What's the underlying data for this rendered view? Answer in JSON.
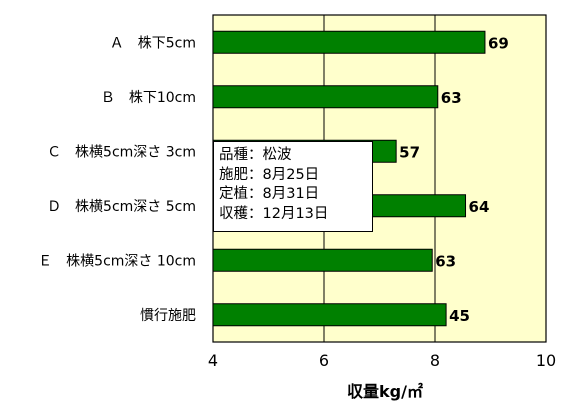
{
  "colors": {
    "plot_bg": "#FFFFCC",
    "bar": "#008000",
    "bar_border": "#000000",
    "grid": "#000000"
  },
  "chart_data": {
    "type": "bar",
    "orientation": "horizontal",
    "categories": [
      "Ａ　株下5cm",
      "Ｂ　株下10cm",
      "Ｃ　株横5cm深さ 3cm",
      "Ｄ　株横5cm深さ 5cm",
      "Ｅ　株横5cm深さ 10cm",
      "慣行施肥"
    ],
    "values": [
      8.9,
      8.05,
      7.3,
      8.55,
      7.95,
      8.2
    ],
    "data_labels": [
      "69",
      "63",
      "57",
      "64",
      "63",
      "45"
    ],
    "xlabel": "収量kg/㎡",
    "xlim": [
      4,
      10
    ],
    "xticks": [
      4,
      6,
      8,
      10
    ],
    "grid": true
  },
  "info_box": {
    "lines": [
      "品種：松波",
      "施肥：8月25日",
      "定植：8月31日",
      "収穫：12月13日"
    ]
  }
}
